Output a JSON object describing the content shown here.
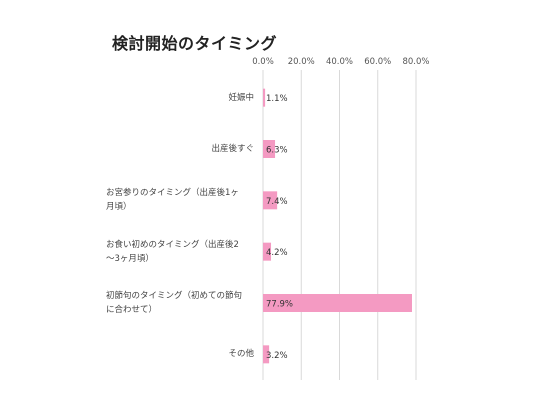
{
  "chart_data": {
    "type": "bar",
    "orientation": "horizontal",
    "title": "検討開始のタイミング",
    "categories": [
      "妊娠中",
      "出産後すぐ",
      "お宮参りのタイミング（出産後1ヶ月頃）",
      "お食い初めのタイミング（出産後2〜3ヶ月頃）",
      "初節句のタイミング（初めての節句に合わせて）",
      "その他"
    ],
    "category_lines": [
      [
        "妊娠中"
      ],
      [
        "出産後すぐ"
      ],
      [
        "お宮参りのタイミング（出産後1ヶ",
        "月頃）"
      ],
      [
        "お食い初めのタイミング（出産後2",
        "〜3ヶ月頃）"
      ],
      [
        "初節句のタイミング（初めての節句",
        "に合わせて）"
      ],
      [
        "その他"
      ]
    ],
    "values": [
      1.1,
      6.3,
      7.4,
      4.2,
      77.9,
      3.2
    ],
    "data_labels": [
      "1.1%",
      "6.3%",
      "7.4%",
      "4.2%",
      "77.9%",
      "3.2%"
    ],
    "xticks": [
      "0.0%",
      "20.0%",
      "40.0%",
      "60.0%",
      "80.0%"
    ],
    "xlim": [
      0,
      80
    ],
    "xlabel": "",
    "ylabel": "",
    "grid": true,
    "legend": "none",
    "bar_color": "#f49ac2",
    "grid_color": "#d9d9d9"
  }
}
